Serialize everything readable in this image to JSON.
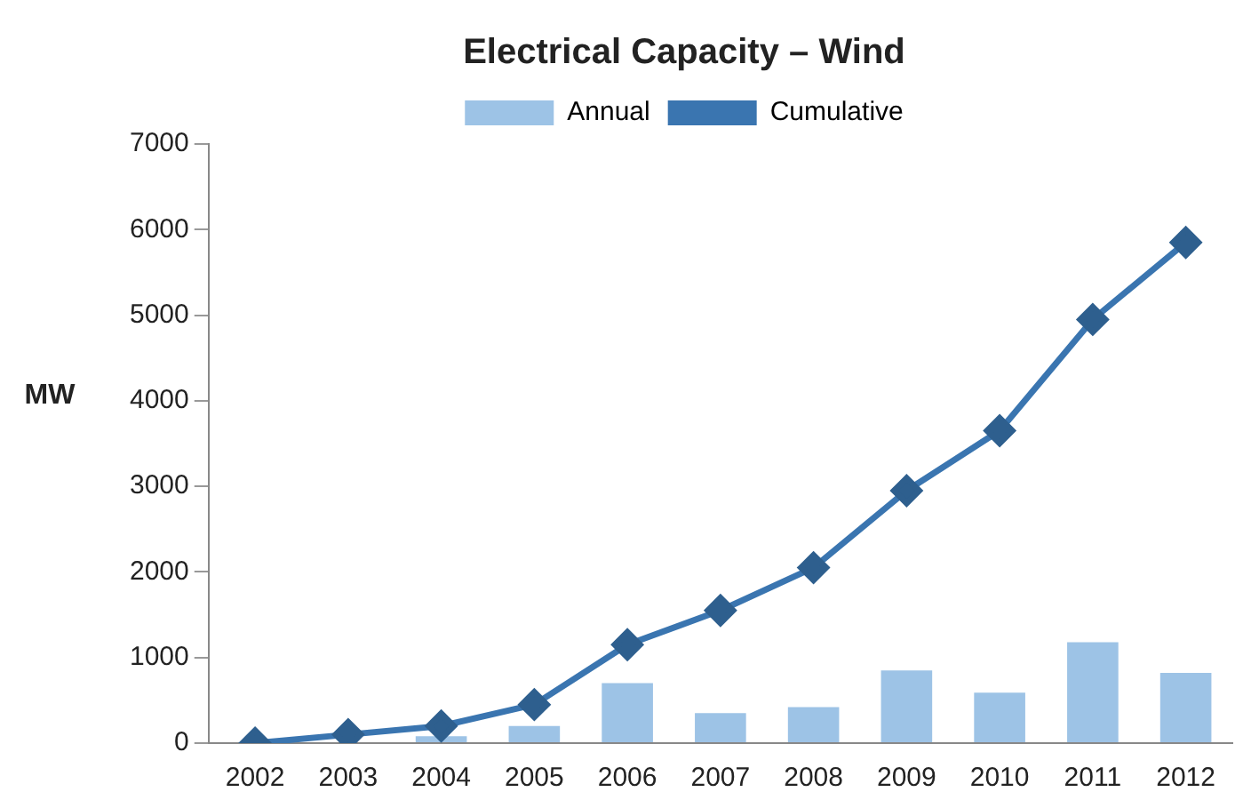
{
  "chart_data": {
    "type": "bar",
    "title": "Electrical Capacity – Wind",
    "ylabel": "MW",
    "categories": [
      "2002",
      "2003",
      "2004",
      "2005",
      "2006",
      "2007",
      "2008",
      "2009",
      "2010",
      "2011",
      "2012"
    ],
    "series": [
      {
        "name": "Annual",
        "color": "#9dc3e6",
        "values": [
          0,
          null,
          80,
          200,
          700,
          350,
          420,
          850,
          590,
          1180,
          820
        ]
      },
      {
        "name": "Cumulative",
        "type": "line",
        "color": "#3a75b0",
        "marker": "diamond",
        "values": [
          0,
          100,
          200,
          450,
          1150,
          1550,
          2050,
          2950,
          3650,
          4950,
          5850
        ]
      }
    ],
    "ylim": [
      0,
      7000
    ],
    "yticks": [
      0,
      1000,
      2000,
      3000,
      4000,
      5000,
      6000,
      7000
    ],
    "grid": false,
    "legend": "top"
  }
}
